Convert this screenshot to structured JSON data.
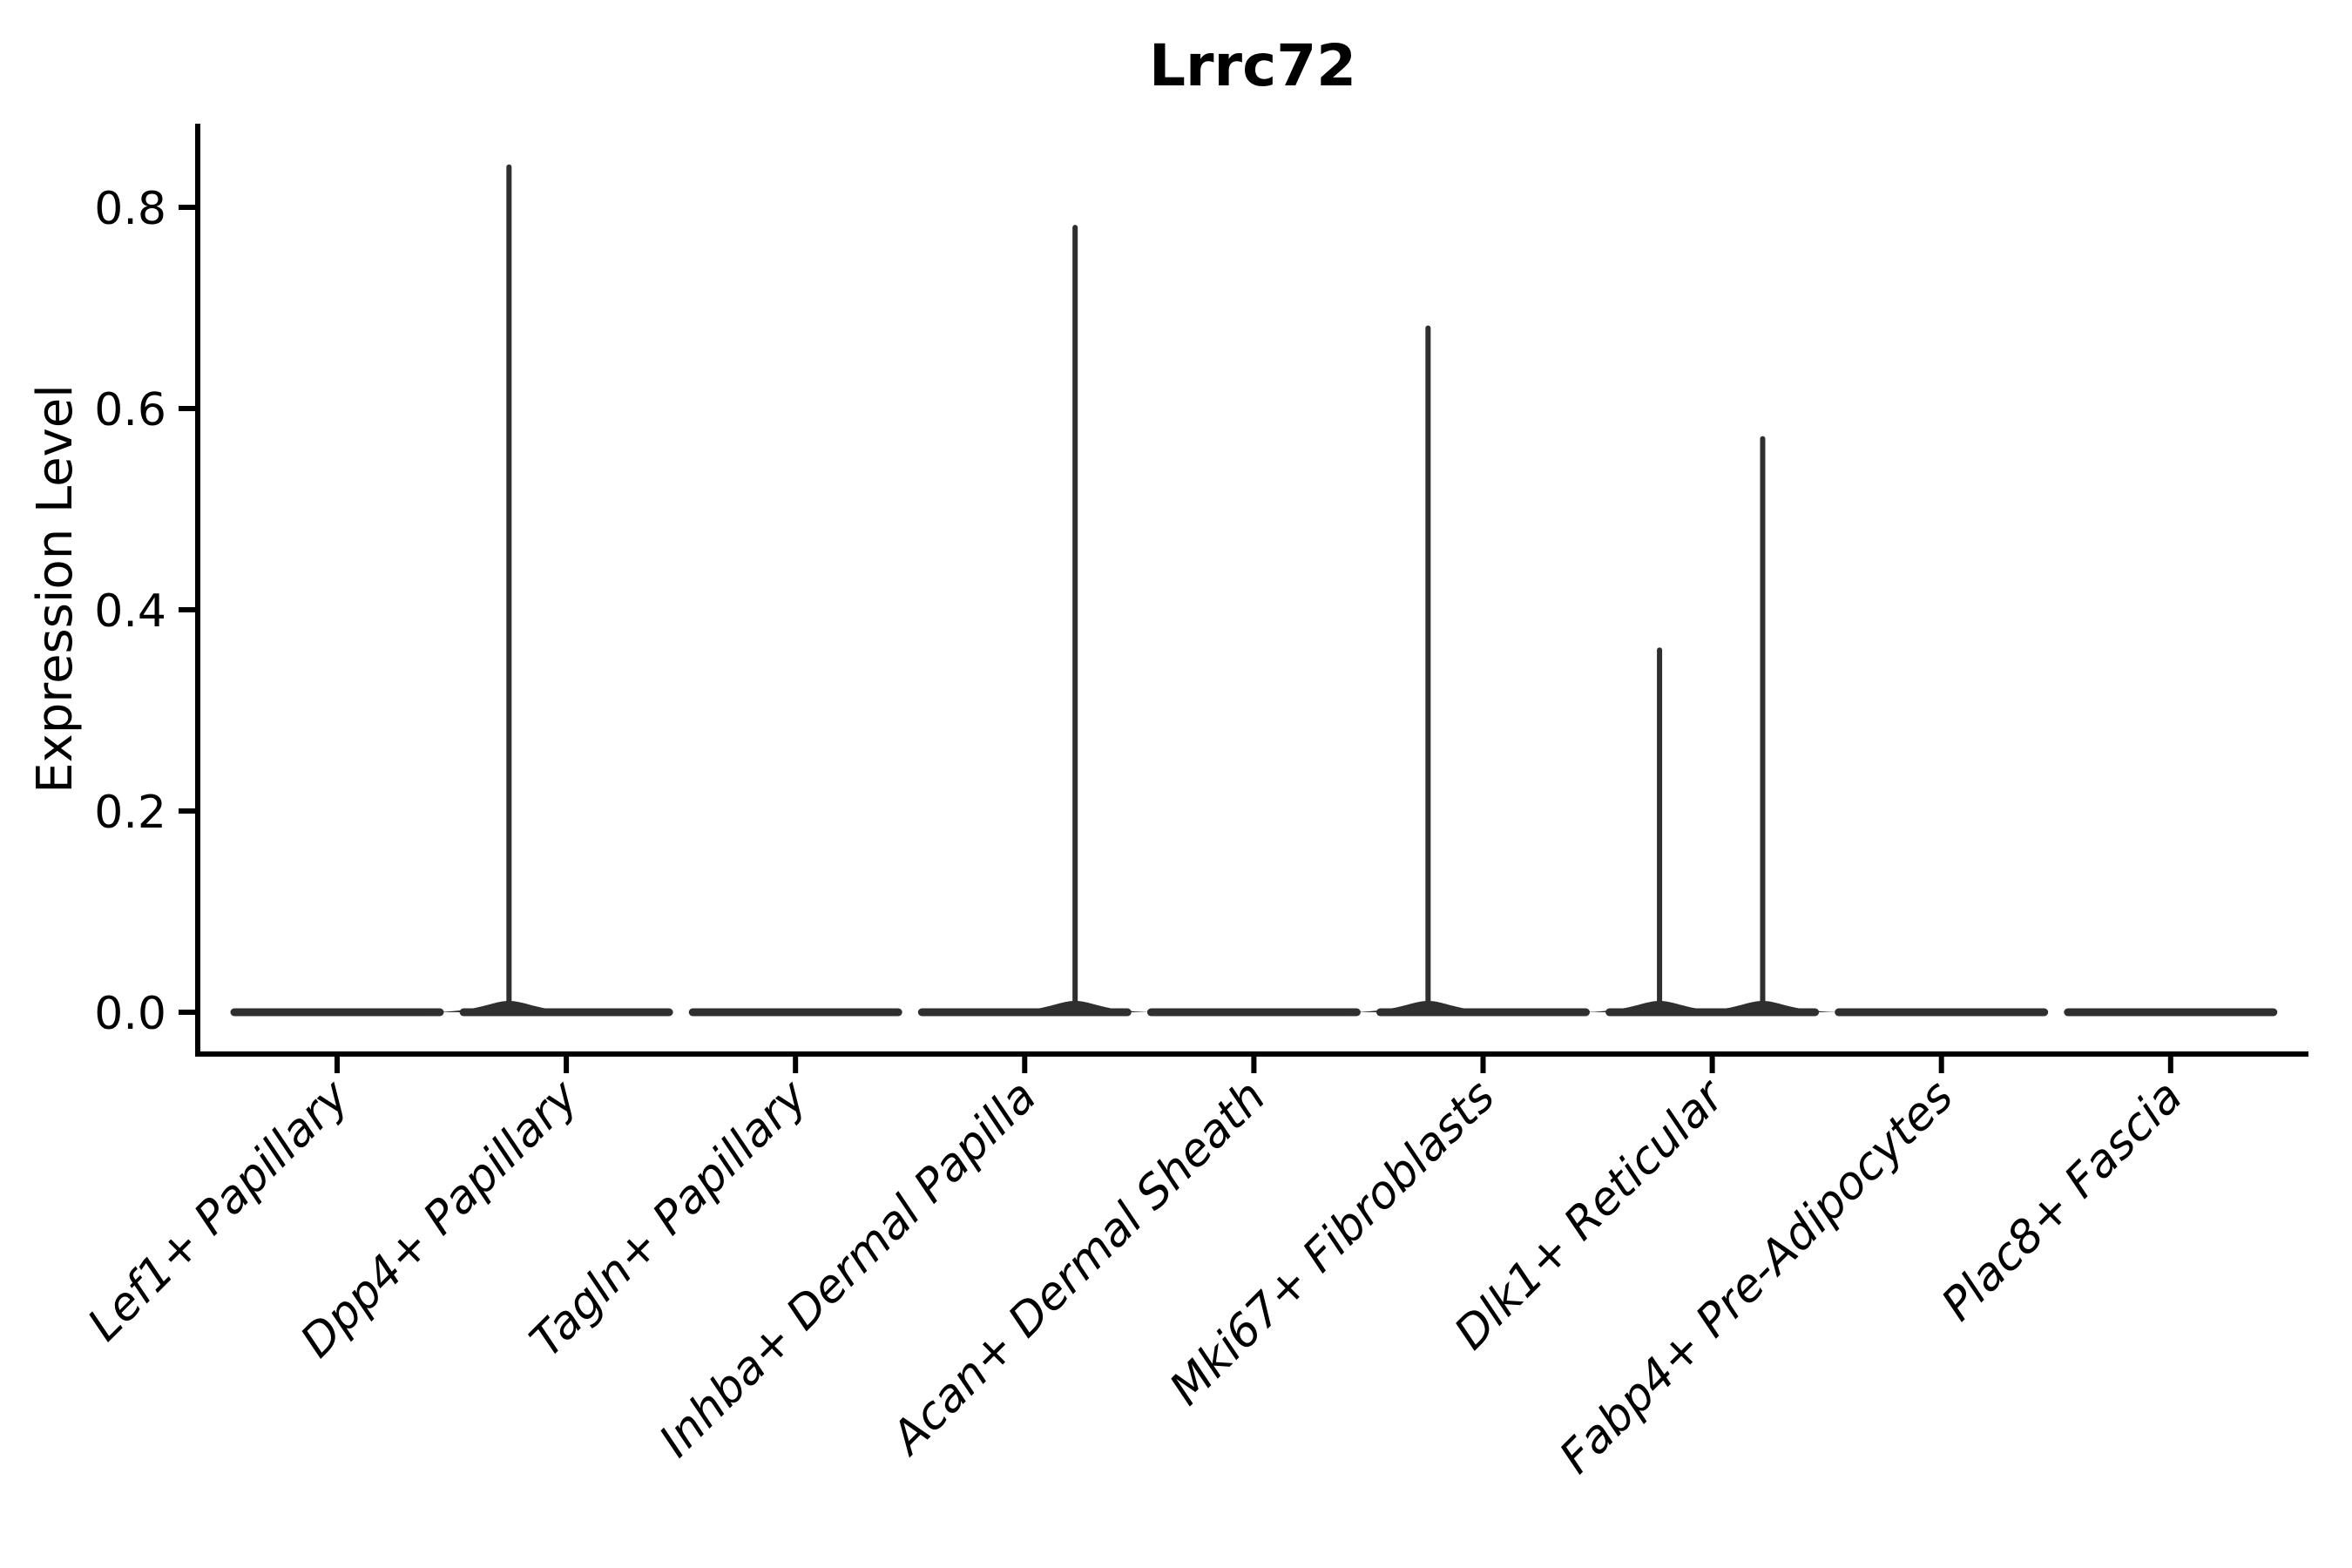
{
  "chart_data": {
    "type": "violin",
    "title": "Lrrc72",
    "ylabel": "Expression Level",
    "xlabel": "",
    "grid": false,
    "legend_position": "none",
    "ylim": [
      -0.042,
      0.884
    ],
    "ytick_values": [
      0.0,
      0.2,
      0.4,
      0.6,
      0.8
    ],
    "ytick_labels": [
      "0.0",
      "0.2",
      "0.4",
      "0.6",
      "0.8"
    ],
    "categories": [
      "Lef1+ Papillary",
      "Dpp4+ Papillary",
      "Tagln+ Papillary",
      "Inhba+ Dermal Papilla",
      "Acan+ Dermal Sheath",
      "Mki67+ Fibroblasts",
      "Dlk1+ Reticular",
      "Fabp4+ Pre-Adipocytes",
      "Plac8+ Fascia"
    ],
    "violins": [
      {
        "category": "Lef1+ Papillary",
        "baseline_value": 0.0,
        "spikes": []
      },
      {
        "category": "Dpp4+ Papillary",
        "baseline_value": 0.0,
        "spikes": [
          {
            "value": 0.84,
            "offset": -0.25
          }
        ]
      },
      {
        "category": "Tagln+ Papillary",
        "baseline_value": 0.0,
        "spikes": []
      },
      {
        "category": "Inhba+ Dermal Papilla",
        "baseline_value": 0.0,
        "spikes": [
          {
            "value": 0.78,
            "offset": 0.22
          }
        ]
      },
      {
        "category": "Acan+ Dermal Sheath",
        "baseline_value": 0.0,
        "spikes": []
      },
      {
        "category": "Mki67+ Fibroblasts",
        "baseline_value": 0.0,
        "spikes": [
          {
            "value": 0.68,
            "offset": -0.24
          }
        ]
      },
      {
        "category": "Dlk1+ Reticular",
        "baseline_value": 0.0,
        "spikes": [
          {
            "value": 0.36,
            "offset": -0.23
          },
          {
            "value": 0.57,
            "offset": 0.22
          }
        ]
      },
      {
        "category": "Fabp4+ Pre-Adipocytes",
        "baseline_value": 0.0,
        "spikes": []
      },
      {
        "category": "Plac8+ Fascia",
        "baseline_value": 0.0,
        "spikes": []
      }
    ],
    "colors": {
      "violin_stroke": "#2f2f2f",
      "axis": "#000000",
      "text": "#000000",
      "background": "#ffffff"
    }
  }
}
